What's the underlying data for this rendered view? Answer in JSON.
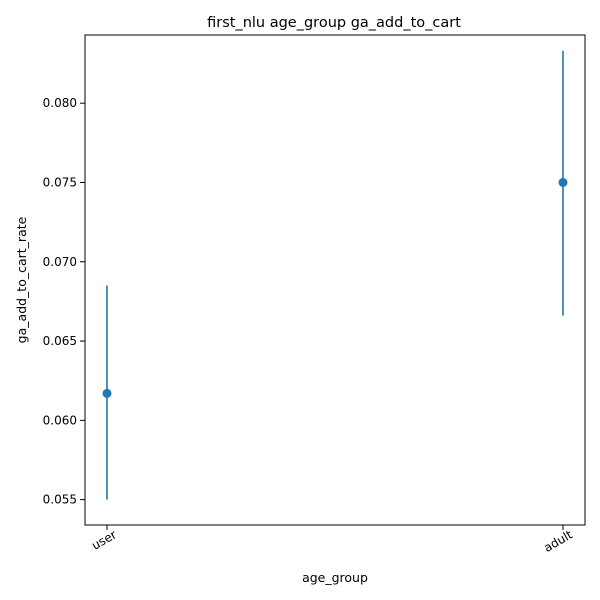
{
  "chart_data": {
    "type": "scatter",
    "title": "first_nlu age_group ga_add_to_cart",
    "xlabel": "age_group",
    "ylabel": "ga_add_to_cart_rate",
    "categories": [
      "user",
      "adult"
    ],
    "series": [
      {
        "values": [
          0.0617,
          0.075
        ],
        "error_low": [
          0.055,
          0.0666
        ],
        "error_high": [
          0.0685,
          0.0833
        ]
      }
    ],
    "ylim": [
      0.0534,
      0.0843
    ],
    "yticks": [
      0.055,
      0.06,
      0.065,
      0.07,
      0.075,
      0.08
    ],
    "ytick_labels": [
      "0.055",
      "0.060",
      "0.065",
      "0.070",
      "0.075",
      "0.080"
    ],
    "grid": false,
    "color": "#1f77b4"
  }
}
